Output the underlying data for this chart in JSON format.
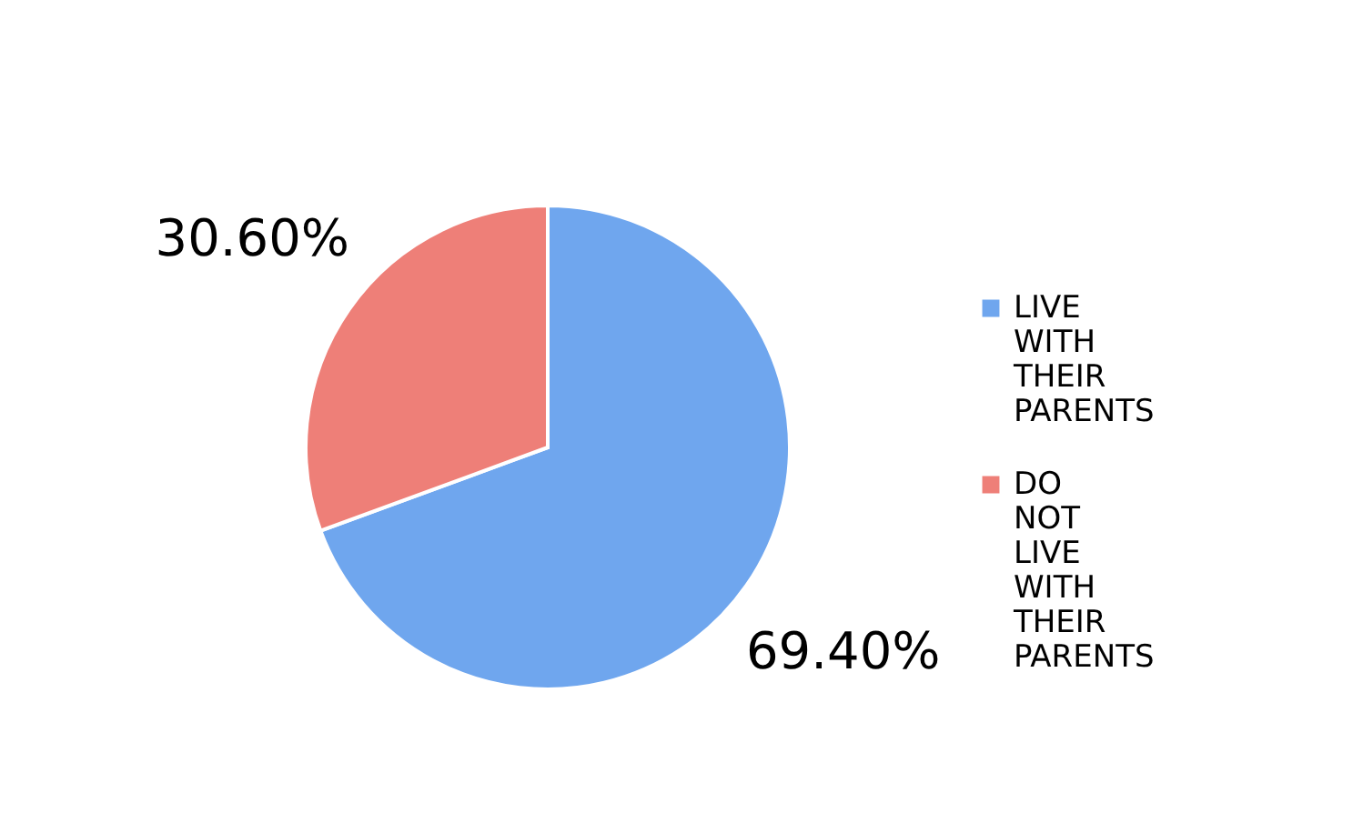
{
  "chart_data": {
    "type": "pie",
    "categories": [
      "LIVE WITH THEIR PARENTS",
      "DO NOT LIVE WITH THEIR PARENTS"
    ],
    "values": [
      69.4,
      30.6
    ],
    "colors": [
      "#6fa6ee",
      "#ee7f78"
    ],
    "value_labels": [
      "69.40%",
      "30.60%"
    ],
    "legend": "right"
  }
}
